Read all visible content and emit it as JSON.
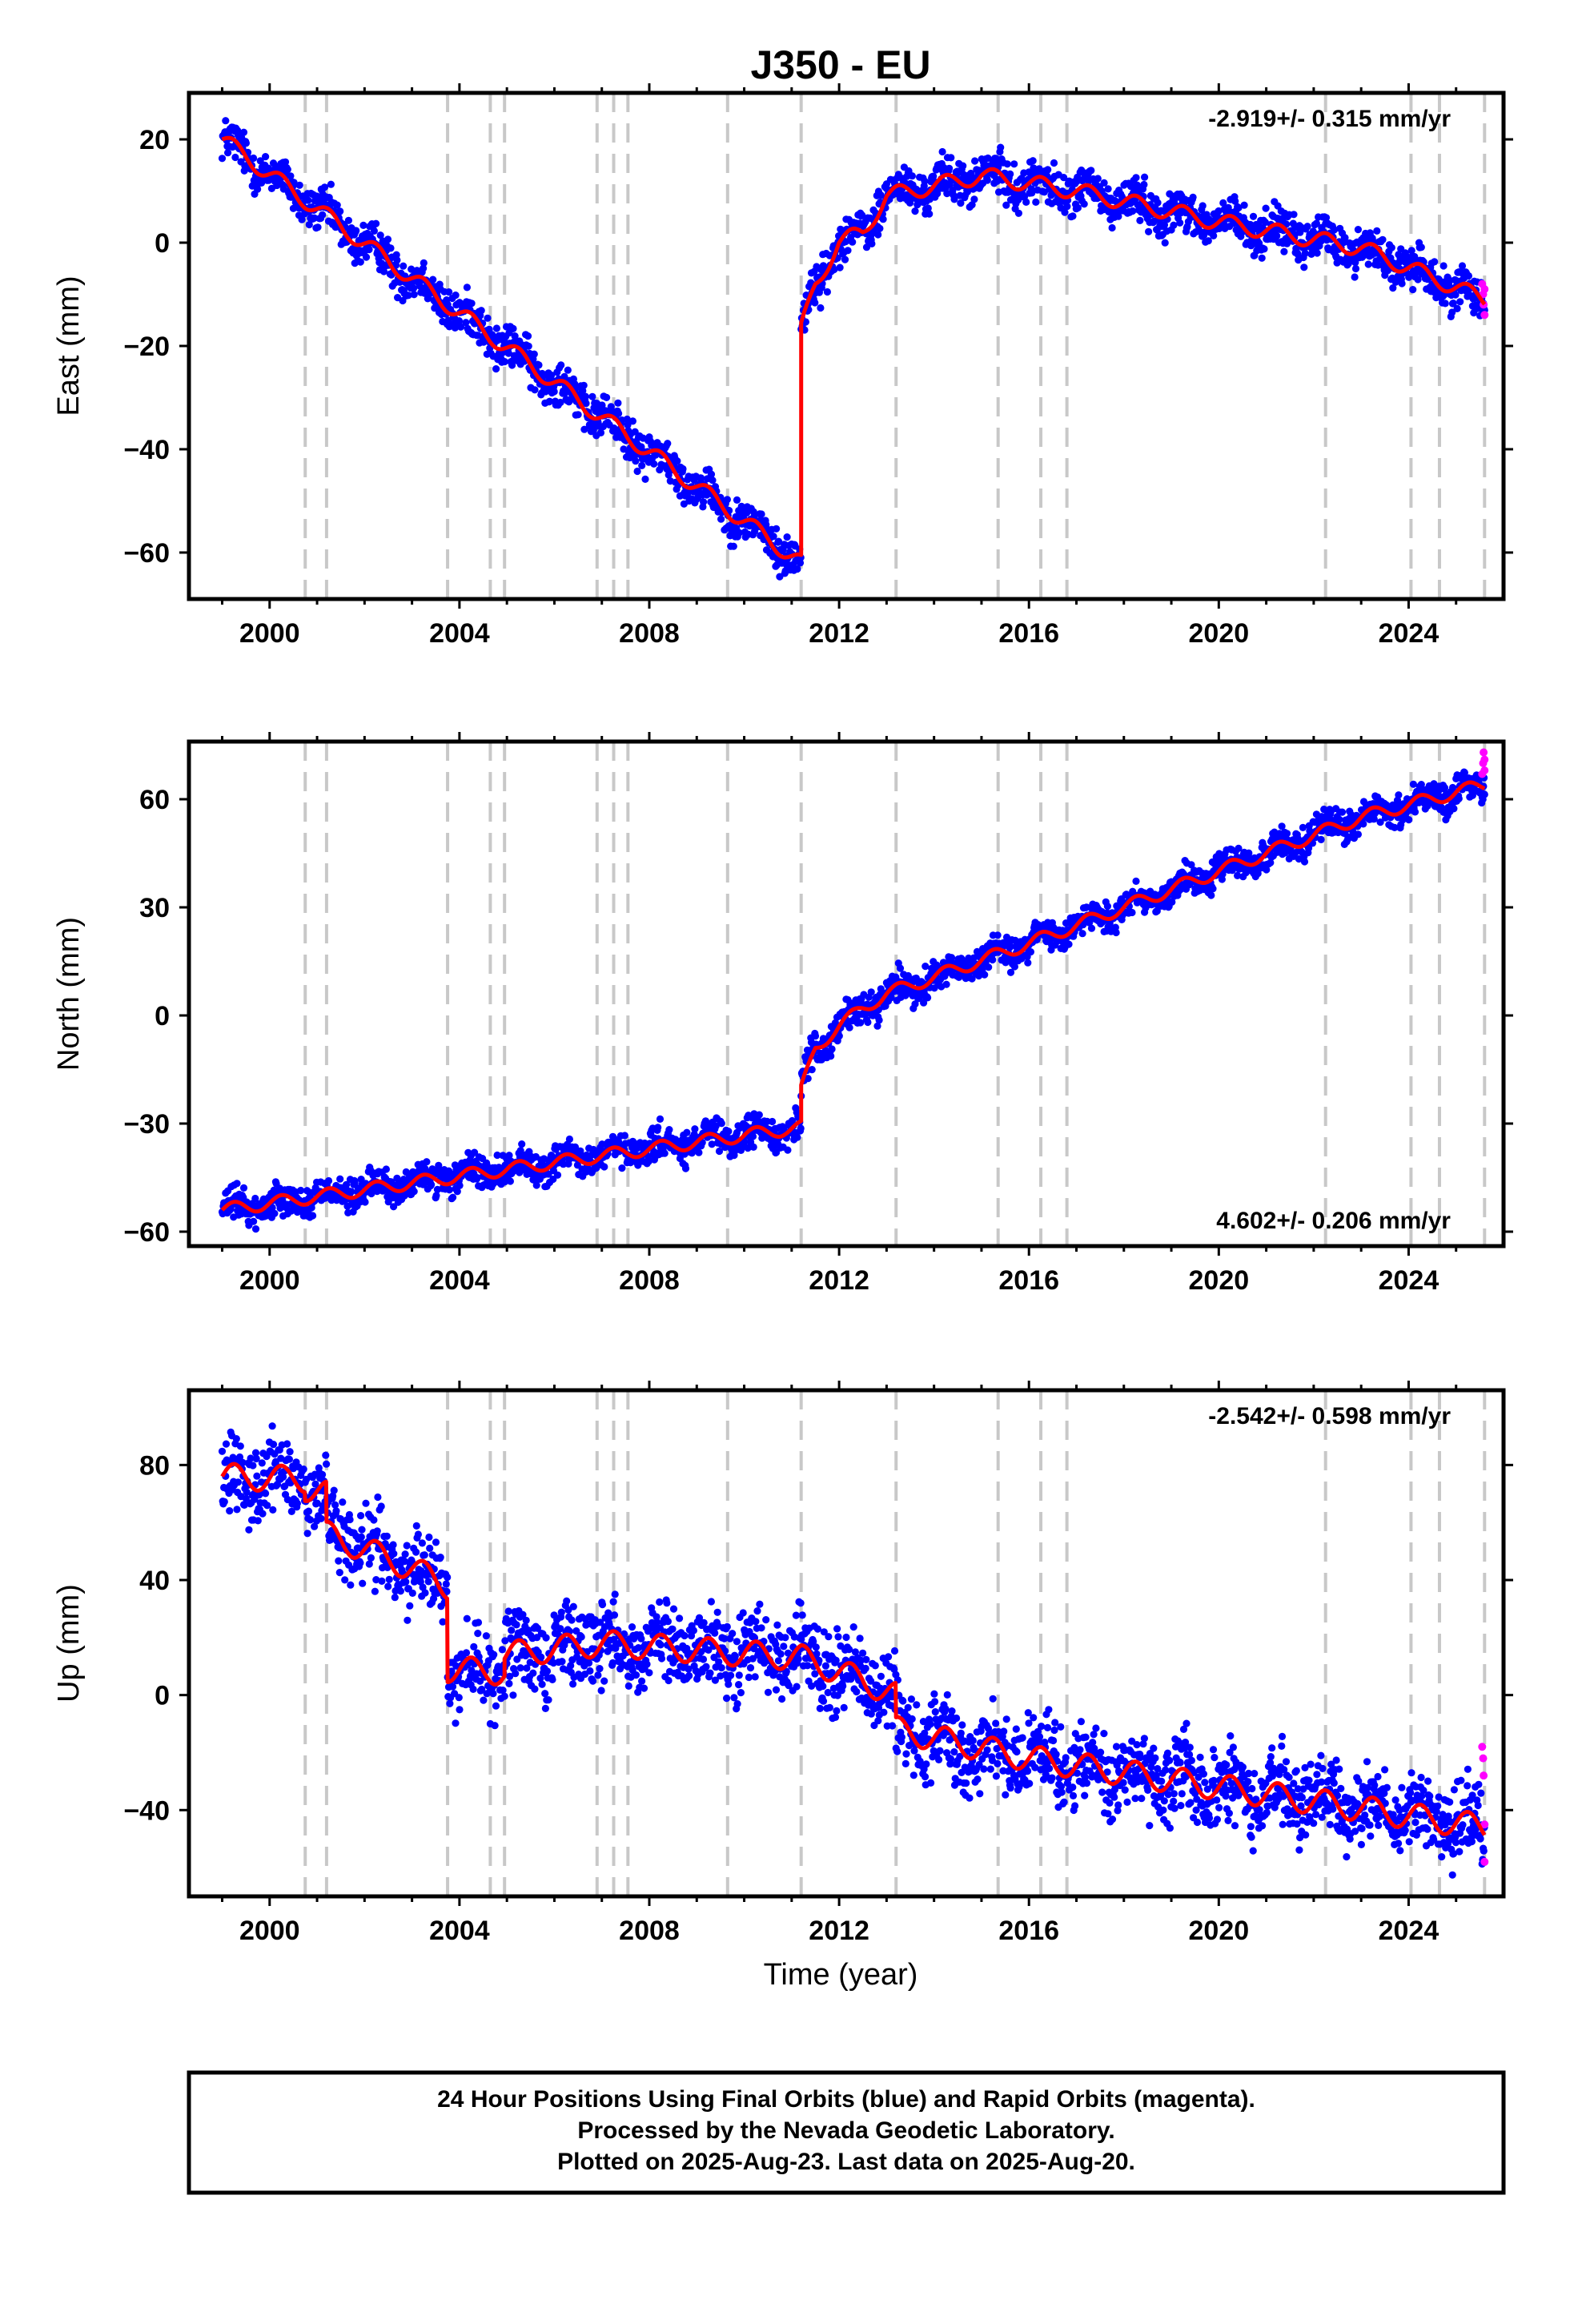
{
  "title": "J350 - EU",
  "xlabel": "Time (year)",
  "footer": {
    "line1": "24 Hour Positions Using Final Orbits (blue) and Rapid Orbits (magenta).",
    "line2": "Processed by the Nevada Geodetic Laboratory.",
    "line3": "Plotted on 2025-Aug-23. Last data on 2025-Aug-20."
  },
  "colors": {
    "final_orbits": "#0000ff",
    "rapid_orbits": "#ff00ff",
    "model": "#ff0000",
    "event_lines": "#c8c8c8"
  },
  "chart_data": [
    {
      "type": "scatter",
      "component": "East",
      "ylabel": "East (mm)",
      "rate": "-2.919+/- 0.315 mm/yr",
      "rate_position": "top-right",
      "xlim": [
        1998.3,
        2026.0
      ],
      "ylim": [
        -69,
        29
      ],
      "xticks": [
        2000,
        2004,
        2008,
        2012,
        2016,
        2020,
        2024
      ],
      "yticks": [
        -60,
        -40,
        -20,
        0,
        20
      ],
      "ytick_labels": [
        "−60",
        "−40",
        "−20",
        "0",
        "20"
      ],
      "event_lines": [
        2000.75,
        2001.2,
        2003.75,
        2004.65,
        2004.95,
        2006.9,
        2007.25,
        2007.55,
        2009.65,
        2011.2,
        2013.2,
        2015.35,
        2016.25,
        2016.8,
        2022.25,
        2024.05,
        2024.65,
        2025.6
      ],
      "amp": 1.6,
      "noise": 2.0,
      "segments": [
        {
          "t": [
            1999.0,
            2011.2
          ],
          "v": [
            20,
            -62
          ]
        },
        {
          "t": [
            2011.2,
            2011.5,
            2012.0,
            2012.5,
            2013.0
          ],
          "v": [
            -17,
            -8,
            0,
            2,
            9
          ]
        },
        {
          "t": [
            2013.0,
            2015.0,
            2017.0,
            2020.0,
            2023.0,
            2025.6
          ],
          "v": [
            9,
            13,
            10,
            4,
            -1,
            -11
          ]
        }
      ],
      "rapid": [
        [
          2025.55,
          -8
        ],
        [
          2025.57,
          -10
        ],
        [
          2025.58,
          -12
        ],
        [
          2025.6,
          -14
        ],
        [
          2025.6,
          -9
        ]
      ]
    },
    {
      "type": "scatter",
      "component": "North",
      "ylabel": "North (mm)",
      "rate": "4.602+/- 0.206 mm/yr",
      "rate_position": "bottom-right",
      "xlim": [
        1998.3,
        2026.0
      ],
      "ylim": [
        -64,
        76
      ],
      "xticks": [
        2000,
        2004,
        2008,
        2012,
        2016,
        2020,
        2024
      ],
      "yticks": [
        -60,
        -30,
        0,
        30,
        60
      ],
      "ytick_labels": [
        "−60",
        "−30",
        "0",
        "30",
        "60"
      ],
      "event_lines": [
        2000.75,
        2001.2,
        2003.75,
        2004.65,
        2004.95,
        2006.9,
        2007.25,
        2007.55,
        2009.65,
        2011.2,
        2013.2,
        2015.35,
        2016.25,
        2016.8,
        2022.25,
        2024.05,
        2024.65,
        2025.6
      ],
      "amp": 1.8,
      "noise": 2.2,
      "segments": [
        {
          "t": [
            1999.0,
            2011.2
          ],
          "v": [
            -54,
            -31
          ]
        },
        {
          "t": [
            2011.2,
            2011.5,
            2012.0,
            2012.5,
            2013.0
          ],
          "v": [
            -21,
            -9,
            -3,
            2,
            6
          ]
        },
        {
          "t": [
            2013.0,
            2016.0,
            2020.0,
            2023.0,
            2025.6
          ],
          "v": [
            6,
            20,
            40,
            55,
            64
          ]
        }
      ],
      "rapid": [
        [
          2025.55,
          67
        ],
        [
          2025.57,
          70
        ],
        [
          2025.58,
          73
        ],
        [
          2025.6,
          71
        ],
        [
          2025.6,
          68
        ]
      ]
    },
    {
      "type": "scatter",
      "component": "Up",
      "ylabel": "Up (mm)",
      "rate": "-2.542+/- 0.598 mm/yr",
      "rate_position": "top-right",
      "xlim": [
        1998.3,
        2026.0
      ],
      "ylim": [
        -70,
        106
      ],
      "xticks": [
        2000,
        2004,
        2008,
        2012,
        2016,
        2020,
        2024
      ],
      "yticks": [
        -40,
        0,
        40,
        80
      ],
      "ytick_labels": [
        "−40",
        "0",
        "40",
        "80"
      ],
      "event_lines": [
        2000.75,
        2001.2,
        2003.75,
        2004.65,
        2004.95,
        2006.9,
        2007.25,
        2007.55,
        2009.65,
        2011.2,
        2013.2,
        2015.35,
        2016.25,
        2016.8,
        2022.25,
        2024.05,
        2024.65,
        2025.6
      ],
      "amp": 4.5,
      "noise": 6.5,
      "segments": [
        {
          "t": [
            1999.0,
            2000.75
          ],
          "v": [
            76,
            75
          ]
        },
        {
          "t": [
            2000.75,
            2001.2
          ],
          "v": [
            72,
            70
          ]
        },
        {
          "t": [
            2001.2,
            2003.0,
            2003.75
          ],
          "v": [
            56,
            44,
            38
          ]
        },
        {
          "t": [
            2003.75,
            2004.95
          ],
          "v": [
            9,
            8
          ]
        },
        {
          "t": [
            2004.95,
            2007.0,
            2011.2,
            2012.5,
            2013.2
          ],
          "v": [
            14,
            18,
            13,
            5,
            0
          ]
        },
        {
          "t": [
            2013.2,
            2016.0,
            2020.0,
            2025.6
          ],
          "v": [
            -12,
            -22,
            -32,
            -46
          ]
        }
      ],
      "rapid": [
        [
          2025.55,
          -18
        ],
        [
          2025.57,
          -22
        ],
        [
          2025.58,
          -28
        ],
        [
          2025.6,
          -45
        ],
        [
          2025.6,
          -58
        ]
      ]
    }
  ]
}
